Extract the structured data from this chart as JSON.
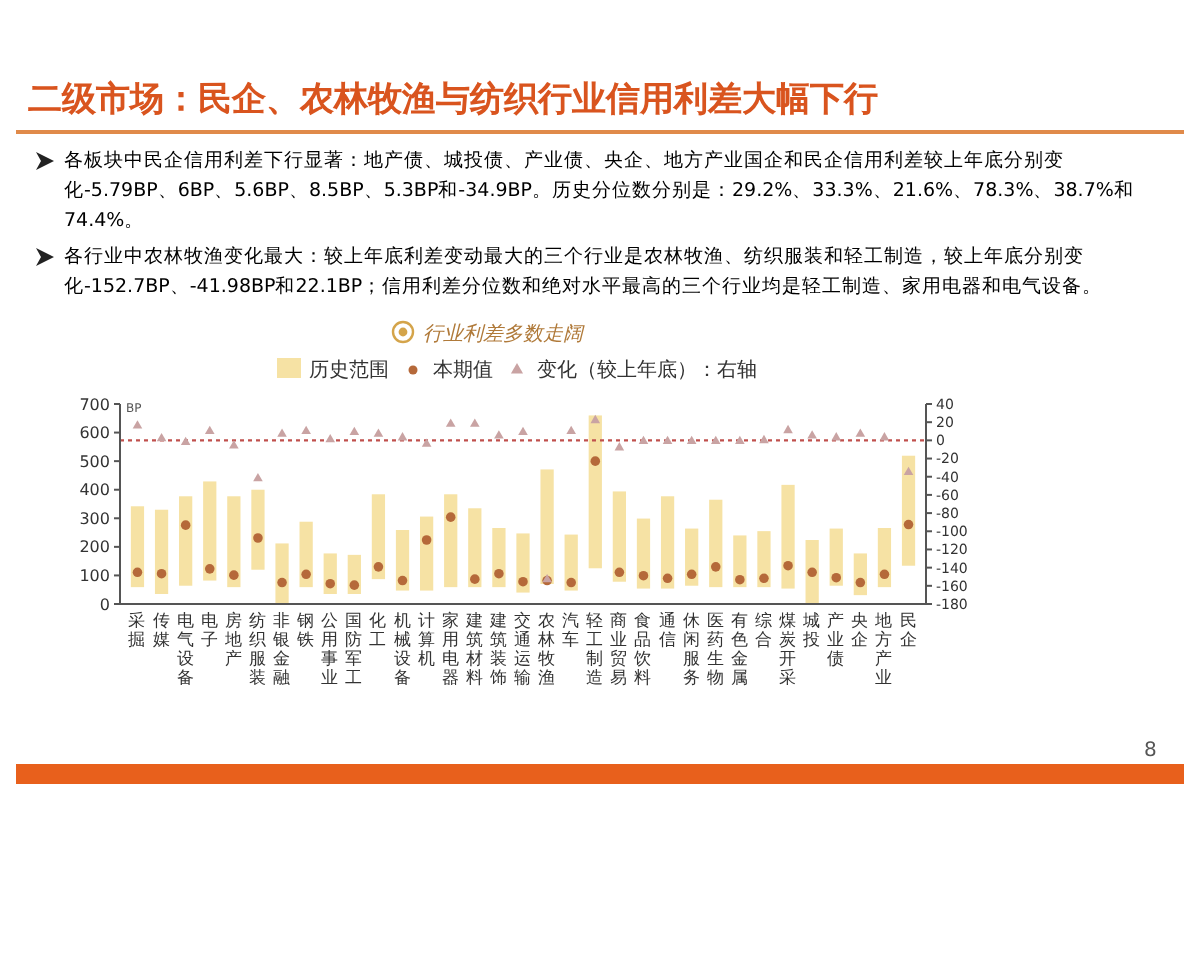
{
  "chart_data": {
    "type": "bar",
    "title": "二级市场：民企、农林牧渔与纺织行业信用利差大幅下行",
    "subtitle": "行业利差多数走阔",
    "ylabel": "BP",
    "annotations": [
      "各板块中民企信用利差下行显著：地产债、城投债、产业债、央企、地方产业国企和民企信用利差较上年底分别变化-5.79BP、6BP、5.6BP、8.5BP、5.3BP和-34.9BP。历史分位数分别是：29.2%、33.3%、21.6%、78.3%、38.7%和74.4%。",
      "各行业中农林牧渔变化最大：较上年底利差变动最大的三个行业是农林牧渔、纺织服装和轻工制造，较上年底分别变化-152.7BP、-41.98BP和22.1BP；信用利差分位数和绝对水平最高的三个行业均是轻工制造、家用电器和电气设备。",
      "8"
    ],
    "categories": [
      "采掘",
      "传媒",
      "电气设备",
      "电子",
      "房地产",
      "纺织服装",
      "非银金融",
      "钢铁",
      "公用事业",
      "国防军工",
      "化工",
      "机械设备",
      "计算机",
      "家用电器",
      "建筑材料",
      "建筑装饰",
      "交通运输",
      "农林牧渔",
      "汽车",
      "轻工制造",
      "商业贸易",
      "食品饮料",
      "通信",
      "休闲服务",
      "医药生物",
      "有色金属",
      "综合",
      "煤炭开采",
      "城投",
      "产业债",
      "央企",
      "地方产业",
      "民企"
    ],
    "series": [
      {
        "name": "历史范围",
        "color": "#f6e2a4",
        "base": [
          59,
          35,
          64,
          82,
          59,
          120,
          0,
          59,
          35,
          35,
          87,
          47,
          47,
          59,
          59,
          59,
          40,
          70,
          47,
          125,
          78,
          54,
          54,
          64,
          59,
          59,
          59,
          54,
          0,
          64,
          31,
          59,
          134
        ],
        "values": [
          283,
          295,
          313,
          347,
          318,
          280,
          212,
          229,
          142,
          137,
          297,
          212,
          259,
          325,
          276,
          207,
          207,
          401,
          196,
          535,
          316,
          245,
          323,
          200,
          306,
          181,
          196,
          363,
          224,
          200,
          146,
          207,
          385
        ]
      },
      {
        "name": "本期值",
        "type": "scatter",
        "marker": "circle",
        "color": "#b5693a",
        "values": [
          111,
          106,
          276,
          123,
          101,
          231,
          75,
          104,
          71,
          66,
          130,
          82,
          224,
          304,
          87,
          106,
          78,
          82,
          75,
          500,
          111,
          99,
          90,
          104,
          130,
          85,
          90,
          134,
          111,
          92,
          75,
          104,
          278
        ]
      },
      {
        "name": "变化（较上年底）：右轴",
        "type": "scatter",
        "marker": "triangle",
        "axis": "y2",
        "color": "#c9a3a3",
        "values": [
          16,
          2,
          -2,
          10,
          -6,
          -42,
          7,
          10,
          1,
          9,
          7,
          3,
          -4,
          18,
          18,
          5,
          9,
          -153,
          10,
          22,
          -8,
          -1,
          -1,
          -1,
          -1,
          -1,
          0,
          11,
          5,
          3,
          7,
          3,
          -35
        ]
      }
    ],
    "ylim": [
      0,
      700
    ],
    "yticks": [
      0,
      100,
      200,
      300,
      400,
      500,
      600,
      700
    ],
    "y2lim": [
      -180,
      40
    ],
    "y2ticks": [
      -180,
      -160,
      -140,
      -120,
      -100,
      -80,
      -60,
      -40,
      -20,
      0,
      20,
      40
    ],
    "ref_lines": [
      {
        "axis": "y2",
        "value": 0,
        "color": "#c0504d",
        "line_style": "dotted"
      }
    ],
    "legend": "top",
    "grid": false
  }
}
